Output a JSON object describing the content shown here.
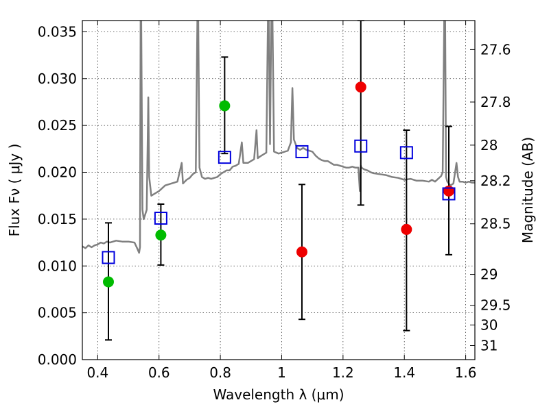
{
  "chart_data": {
    "type": "scatter",
    "xlabel": "Wavelength  λ (μm)",
    "ylabel": "Flux  Fν  ( μJy )",
    "y2label": "Magnitude (AB)",
    "xlim": [
      0.35,
      1.63
    ],
    "ylim": [
      0.0,
      0.0362
    ],
    "grid": true,
    "x_ticks": [
      "0.4",
      "0.6",
      "0.8",
      "1",
      "1.2",
      "1.4",
      "1.6"
    ],
    "y_ticks": [
      "0.000",
      "0.005",
      "0.010",
      "0.015",
      "0.020",
      "0.025",
      "0.030",
      "0.035"
    ],
    "y2_ticks": [
      {
        "label": "27.6",
        "flux": 0.0331
      },
      {
        "label": "27.8",
        "flux": 0.0275
      },
      {
        "label": "28",
        "flux": 0.0229
      },
      {
        "label": "28.2",
        "flux": 0.0191
      },
      {
        "label": "28.5",
        "flux": 0.0145
      },
      {
        "label": "29",
        "flux": 0.0091
      },
      {
        "label": "29.5",
        "flux": 0.0058
      },
      {
        "label": "30",
        "flux": 0.0037
      },
      {
        "label": "31",
        "flux": 0.0015
      }
    ],
    "series": [
      {
        "marker": "circle",
        "color": "#00bb00",
        "points": [
          {
            "x": 0.435,
            "y": 0.0083
          },
          {
            "x": 0.606,
            "y": 0.0133
          },
          {
            "x": 0.814,
            "y": 0.0271
          }
        ]
      },
      {
        "marker": "circle",
        "color": "#ee0000",
        "points": [
          {
            "x": 1.066,
            "y": 0.0115
          },
          {
            "x": 1.258,
            "y": 0.0291
          },
          {
            "x": 1.407,
            "y": 0.0139
          },
          {
            "x": 1.545,
            "y": 0.018
          }
        ]
      },
      {
        "marker": "square-open",
        "color": "#0000dd",
        "points": [
          {
            "x": 0.435,
            "y": 0.0109
          },
          {
            "x": 0.606,
            "y": 0.0151
          },
          {
            "x": 0.814,
            "y": 0.0216
          },
          {
            "x": 1.066,
            "y": 0.0222
          },
          {
            "x": 1.258,
            "y": 0.0228
          },
          {
            "x": 1.407,
            "y": 0.0221
          },
          {
            "x": 1.545,
            "y": 0.0177
          }
        ]
      }
    ],
    "error_bars": [
      {
        "x": 0.435,
        "low": 0.0021,
        "high": 0.0146
      },
      {
        "x": 0.606,
        "low": 0.0101,
        "high": 0.0166
      },
      {
        "x": 0.814,
        "low": 0.022,
        "high": 0.0323
      },
      {
        "x": 1.066,
        "low": 0.0043,
        "high": 0.0187
      },
      {
        "x": 1.258,
        "low": 0.0165,
        "high": 0.0362
      },
      {
        "x": 1.407,
        "low": 0.0031,
        "high": 0.0245
      },
      {
        "x": 1.545,
        "low": 0.0112,
        "high": 0.0249
      }
    ],
    "model_spectrum": {
      "color": "#808080",
      "points": [
        [
          0.35,
          0.0121
        ],
        [
          0.36,
          0.0119
        ],
        [
          0.37,
          0.0122
        ],
        [
          0.38,
          0.012
        ],
        [
          0.39,
          0.0122
        ],
        [
          0.4,
          0.0123
        ],
        [
          0.41,
          0.0125
        ],
        [
          0.42,
          0.0124
        ],
        [
          0.43,
          0.0126
        ],
        [
          0.44,
          0.0125
        ],
        [
          0.46,
          0.0127
        ],
        [
          0.48,
          0.0126
        ],
        [
          0.5,
          0.0126
        ],
        [
          0.52,
          0.0125
        ],
        [
          0.53,
          0.0118
        ],
        [
          0.535,
          0.0114
        ],
        [
          0.538,
          0.012
        ],
        [
          0.54,
          0.0362
        ],
        [
          0.542,
          0.0362
        ],
        [
          0.546,
          0.016
        ],
        [
          0.55,
          0.015
        ],
        [
          0.56,
          0.016
        ],
        [
          0.565,
          0.028
        ],
        [
          0.568,
          0.0195
        ],
        [
          0.575,
          0.0175
        ],
        [
          0.59,
          0.0178
        ],
        [
          0.6,
          0.018
        ],
        [
          0.62,
          0.0186
        ],
        [
          0.64,
          0.0188
        ],
        [
          0.66,
          0.019
        ],
        [
          0.674,
          0.021
        ],
        [
          0.678,
          0.0188
        ],
        [
          0.69,
          0.0192
        ],
        [
          0.7,
          0.0194
        ],
        [
          0.71,
          0.0198
        ],
        [
          0.72,
          0.02
        ],
        [
          0.725,
          0.0362
        ],
        [
          0.728,
          0.0362
        ],
        [
          0.732,
          0.0205
        ],
        [
          0.74,
          0.0195
        ],
        [
          0.75,
          0.0193
        ],
        [
          0.76,
          0.0194
        ],
        [
          0.77,
          0.0193
        ],
        [
          0.78,
          0.0194
        ],
        [
          0.79,
          0.0195
        ],
        [
          0.8,
          0.0198
        ],
        [
          0.81,
          0.02
        ],
        [
          0.82,
          0.0202
        ],
        [
          0.83,
          0.0202
        ],
        [
          0.84,
          0.0206
        ],
        [
          0.85,
          0.0207
        ],
        [
          0.86,
          0.0209
        ],
        [
          0.87,
          0.0232
        ],
        [
          0.875,
          0.021
        ],
        [
          0.89,
          0.021
        ],
        [
          0.9,
          0.0212
        ],
        [
          0.91,
          0.0214
        ],
        [
          0.918,
          0.0245
        ],
        [
          0.922,
          0.0215
        ],
        [
          0.93,
          0.0217
        ],
        [
          0.94,
          0.0219
        ],
        [
          0.95,
          0.0221
        ],
        [
          0.955,
          0.0362
        ],
        [
          0.958,
          0.0362
        ],
        [
          0.962,
          0.023
        ],
        [
          0.966,
          0.0362
        ],
        [
          0.97,
          0.0362
        ],
        [
          0.975,
          0.0222
        ],
        [
          0.99,
          0.022
        ],
        [
          1.0,
          0.0221
        ],
        [
          1.01,
          0.0222
        ],
        [
          1.02,
          0.0223
        ],
        [
          1.03,
          0.0232
        ],
        [
          1.035,
          0.029
        ],
        [
          1.04,
          0.0235
        ],
        [
          1.05,
          0.0226
        ],
        [
          1.06,
          0.0224
        ],
        [
          1.07,
          0.0226
        ],
        [
          1.08,
          0.0224
        ],
        [
          1.09,
          0.0223
        ],
        [
          1.1,
          0.0222
        ],
        [
          1.11,
          0.0218
        ],
        [
          1.12,
          0.0215
        ],
        [
          1.13,
          0.0213
        ],
        [
          1.14,
          0.0212
        ],
        [
          1.15,
          0.0212
        ],
        [
          1.16,
          0.021
        ],
        [
          1.17,
          0.0208
        ],
        [
          1.18,
          0.0208
        ],
        [
          1.19,
          0.0207
        ],
        [
          1.2,
          0.0206
        ],
        [
          1.21,
          0.0205
        ],
        [
          1.22,
          0.0205
        ],
        [
          1.23,
          0.0206
        ],
        [
          1.24,
          0.0205
        ],
        [
          1.25,
          0.0205
        ],
        [
          1.255,
          0.018
        ],
        [
          1.258,
          0.0207
        ],
        [
          1.26,
          0.0205
        ],
        [
          1.27,
          0.0203
        ],
        [
          1.28,
          0.0202
        ],
        [
          1.29,
          0.02
        ],
        [
          1.3,
          0.0199
        ],
        [
          1.32,
          0.0198
        ],
        [
          1.34,
          0.0197
        ],
        [
          1.36,
          0.0195
        ],
        [
          1.38,
          0.0194
        ],
        [
          1.4,
          0.0192
        ],
        [
          1.42,
          0.0193
        ],
        [
          1.44,
          0.0191
        ],
        [
          1.46,
          0.0191
        ],
        [
          1.48,
          0.019
        ],
        [
          1.49,
          0.0192
        ],
        [
          1.5,
          0.019
        ],
        [
          1.51,
          0.0193
        ],
        [
          1.52,
          0.0196
        ],
        [
          1.525,
          0.02
        ],
        [
          1.53,
          0.0362
        ],
        [
          1.533,
          0.0362
        ],
        [
          1.536,
          0.0195
        ],
        [
          1.54,
          0.019
        ],
        [
          1.55,
          0.0186
        ],
        [
          1.56,
          0.0188
        ],
        [
          1.57,
          0.021
        ],
        [
          1.575,
          0.0195
        ],
        [
          1.58,
          0.019
        ],
        [
          1.59,
          0.019
        ],
        [
          1.6,
          0.0189
        ],
        [
          1.61,
          0.019
        ],
        [
          1.62,
          0.0189
        ],
        [
          1.63,
          0.0189
        ]
      ]
    }
  }
}
